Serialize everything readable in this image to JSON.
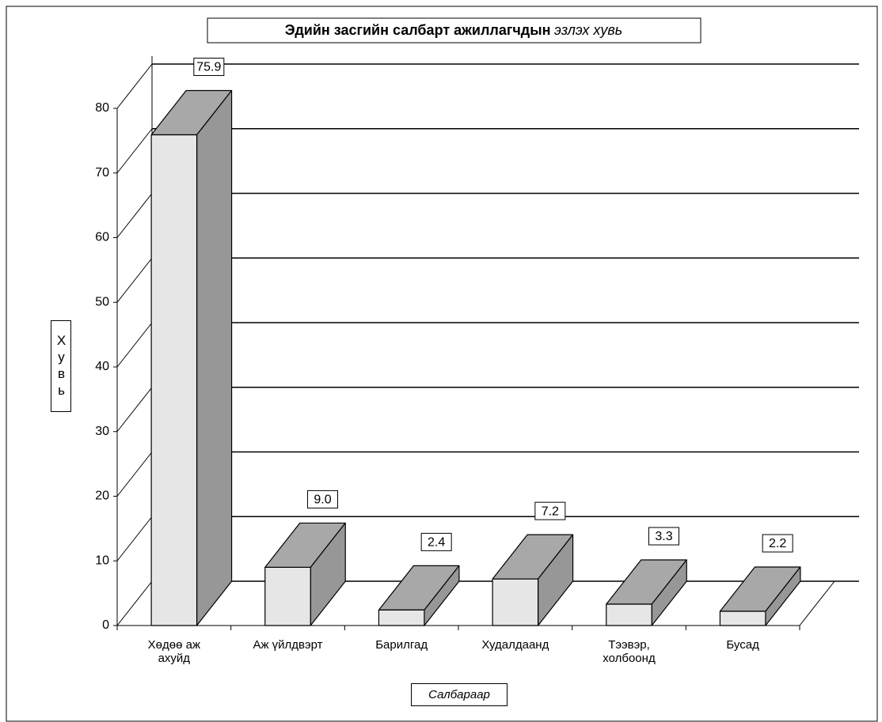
{
  "chart_data": {
    "type": "bar3d",
    "title": "Эдийн засгийн салбарт  ажиллагчдын",
    "subtitle": "эзлэх хувь",
    "y_label": "Хувь",
    "x_label": "Салбараар",
    "categories": [
      "Хөдөө аж ахуйд",
      "Аж үйлдвэрт",
      "Барилгад",
      "Худалдаанд",
      "Тээвэр, холбоонд",
      "Бусад"
    ],
    "values": [
      75.9,
      9.0,
      2.4,
      7.2,
      3.3,
      2.2
    ],
    "value_labels": [
      "75.9",
      "9.0",
      "2.4",
      "7.2",
      "3.3",
      "2.2"
    ],
    "ylim": [
      0,
      80
    ],
    "yticks": [
      0,
      10,
      20,
      30,
      40,
      50,
      60,
      70,
      80
    ],
    "grid": true,
    "colors": {
      "front": "#e6e6e6",
      "top": "#a8a8a8",
      "side": "#979797"
    }
  }
}
